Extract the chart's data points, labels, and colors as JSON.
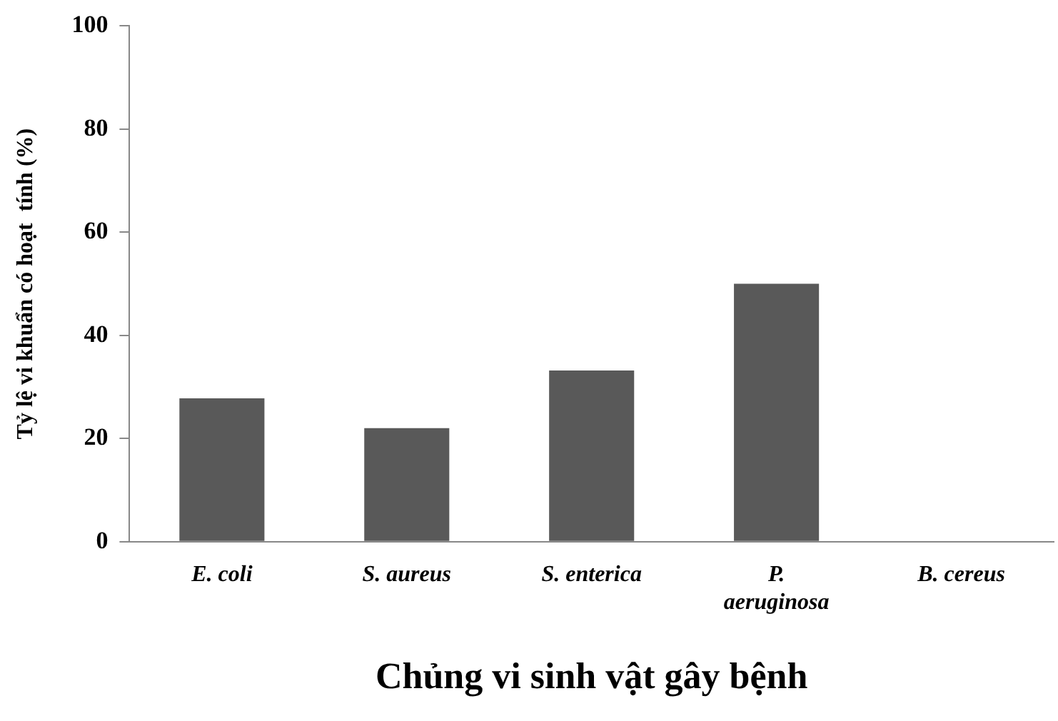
{
  "chart_data": {
    "type": "bar",
    "xlabel": "Chủng vi sinh vật gây bệnh",
    "ylabel": "Tỷ lệ vi khuẩn có hoạt  tính (%)",
    "categories": [
      "E. coli",
      "S. aureus",
      "S. enterica",
      "P. aeruginosa",
      "B. cereus"
    ],
    "values": [
      27.8,
      22,
      33.2,
      50,
      0
    ],
    "color": "#595959",
    "ylim": [
      0,
      100
    ],
    "yticks": [
      0,
      20,
      40,
      60,
      80,
      100
    ],
    "grid": false,
    "legend": false
  }
}
